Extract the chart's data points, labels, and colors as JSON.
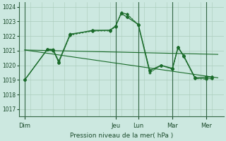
{
  "background_color": "#cce8e0",
  "grid_color": "#aaccbb",
  "line_color": "#1a6b2a",
  "ylim": [
    1016.5,
    1024.3
  ],
  "yticks": [
    1017,
    1018,
    1019,
    1020,
    1021,
    1022,
    1023,
    1024
  ],
  "xlabel": "Pression niveau de la mer( hPa )",
  "day_labels": [
    "Dim",
    "Jeu",
    "Lun",
    "Mar",
    "Mer"
  ],
  "day_positions": [
    0,
    8,
    10,
    13,
    16
  ],
  "xlim": [
    -0.5,
    17.5
  ],
  "series_main_x": [
    0,
    2,
    2.5,
    3,
    4,
    6,
    7.5,
    8,
    8.5,
    9,
    10,
    11,
    12,
    13,
    13.5,
    14,
    15,
    16,
    16.5
  ],
  "series_main_y": [
    1019.0,
    1021.1,
    1021.05,
    1020.2,
    1022.1,
    1022.4,
    1022.4,
    1022.7,
    1023.55,
    1023.3,
    1022.8,
    1019.65,
    1020.0,
    1019.8,
    1021.25,
    1020.65,
    1019.15,
    1019.2,
    1019.2
  ],
  "series2_x": [
    0,
    2,
    2.5,
    3,
    4,
    6,
    7.5,
    8,
    8.5,
    9,
    10,
    11,
    12,
    13,
    13.5,
    14,
    15,
    16,
    16.5
  ],
  "series2_y": [
    1019.0,
    1021.1,
    1021.1,
    1020.3,
    1022.15,
    1022.35,
    1022.4,
    1022.65,
    1023.6,
    1023.5,
    1022.75,
    1019.5,
    1020.0,
    1019.75,
    1021.2,
    1020.6,
    1019.1,
    1019.1,
    1019.1
  ],
  "trend1_x": [
    0,
    17.0
  ],
  "trend1_y": [
    1021.05,
    1020.75
  ],
  "trend2_x": [
    0,
    17.0
  ],
  "trend2_y": [
    1021.05,
    1019.15
  ],
  "dotted_x": [
    0,
    2,
    2.5,
    3,
    4,
    6,
    7.5,
    8,
    8.5,
    9,
    10,
    11,
    12,
    13,
    13.5,
    14,
    15,
    16,
    16.5
  ],
  "dotted_y": [
    1019.0,
    1021.1,
    1021.0,
    1020.25,
    1022.05,
    1022.35,
    1022.35,
    1022.65,
    1023.6,
    1023.5,
    1022.8,
    1019.65,
    1020.0,
    1019.75,
    1021.25,
    1020.6,
    1019.1,
    1019.05,
    1019.1
  ]
}
